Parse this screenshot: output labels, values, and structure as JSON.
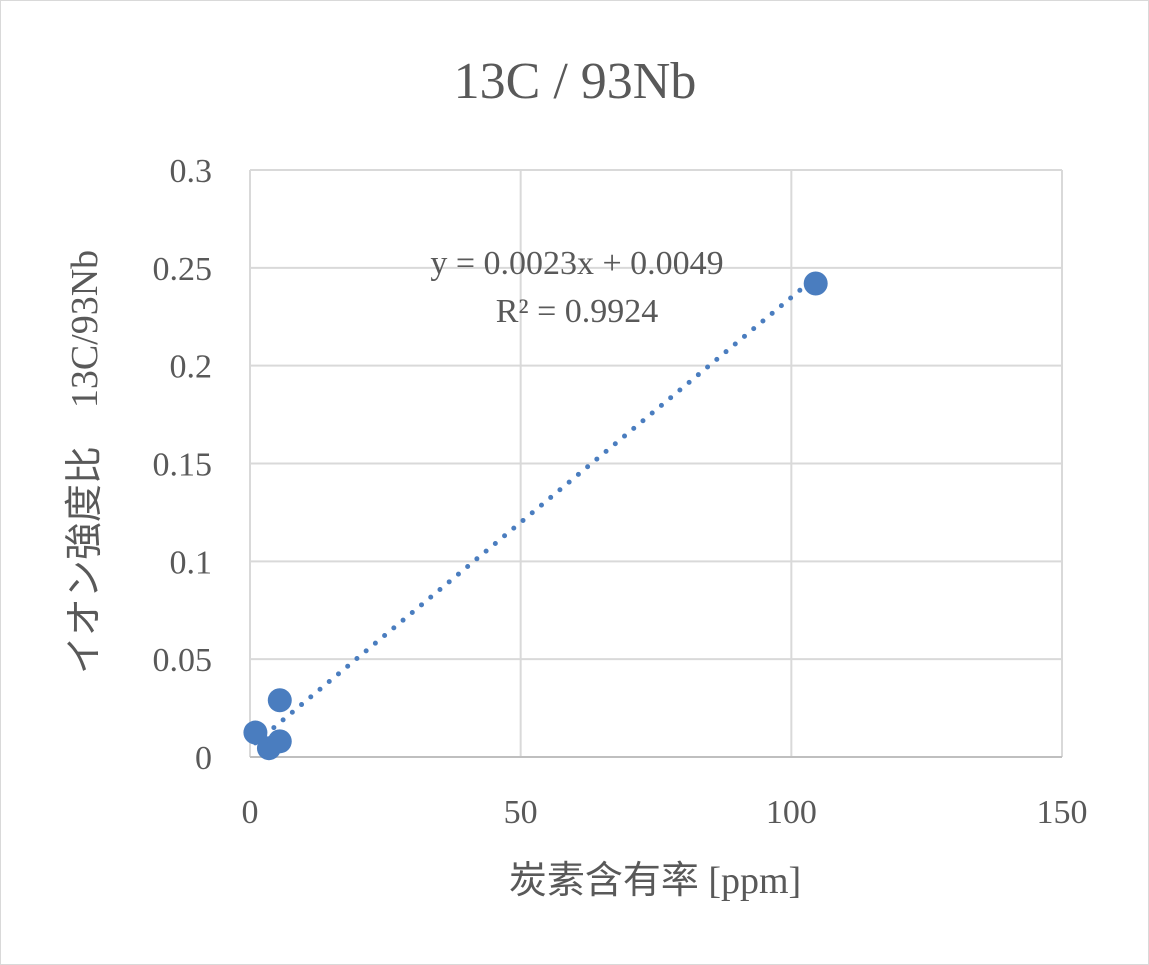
{
  "chart_data": {
    "type": "scatter",
    "title": "13C / 93Nb",
    "xlabel": "炭素含有率 [ppm]",
    "ylabel": "イオン強度比　13C/93Nb",
    "xlim": [
      0,
      150
    ],
    "ylim": [
      0,
      0.3
    ],
    "x_ticks": [
      "0",
      "50",
      "100",
      "150"
    ],
    "y_ticks": [
      "0",
      "0.05",
      "0.1",
      "0.15",
      "0.2",
      "0.25",
      "0.3"
    ],
    "grid": true,
    "series": [
      {
        "color": "#4a7dbf",
        "points": [
          {
            "x": 1.0,
            "y": 0.0125
          },
          {
            "x": 3.5,
            "y": 0.0045
          },
          {
            "x": 5.5,
            "y": 0.008
          },
          {
            "x": 5.5,
            "y": 0.029
          },
          {
            "x": 104.5,
            "y": 0.242
          }
        ]
      }
    ],
    "trendline": {
      "type": "linear",
      "slope": 0.0023,
      "intercept": 0.0049,
      "x_range": [
        1.0,
        104.5
      ],
      "style": "dotted",
      "color": "#4a7dbf",
      "equation_label": "y = 0.0023x + 0.0049",
      "r2_label": "R² = 0.9924"
    }
  }
}
